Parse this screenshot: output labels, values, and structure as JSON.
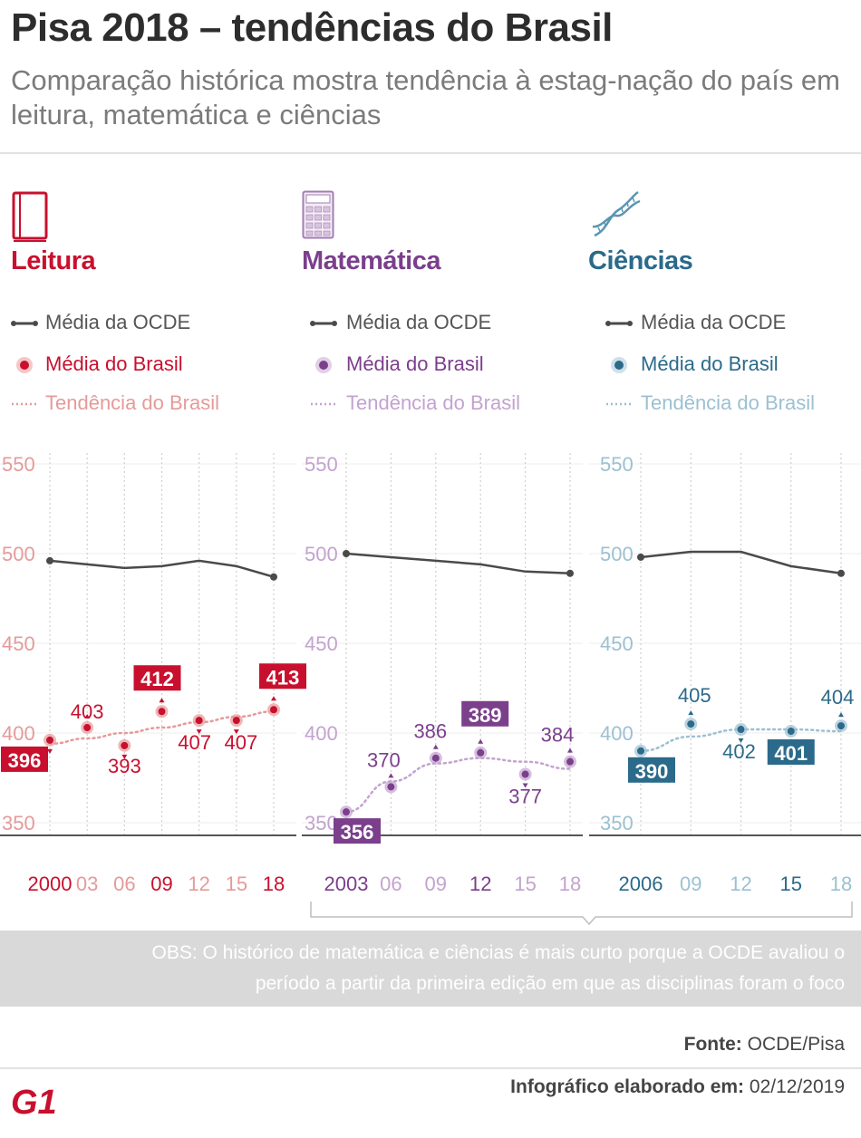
{
  "title": "Pisa 2018 – tendências do Brasil",
  "subtitle": "Comparação histórica mostra tendência à estag-nação do país em leitura, matemática e ciências",
  "legend": {
    "ocde": "Média da OCDE",
    "brasil": "Média do Brasil",
    "tendencia": "Tendência do Brasil"
  },
  "colors": {
    "leitura": "#c8102e",
    "matematica": "#7b3f8c",
    "ciencias": "#2b6a8a",
    "ocde_line": "#4a4a4a"
  },
  "icons": [
    "book-icon",
    "calculator-icon",
    "dna-icon"
  ],
  "chart_data": [
    {
      "type": "line",
      "title": "Leitura",
      "color": "#c8102e",
      "light_color": "#e59a9a",
      "categories": [
        "2000",
        "03",
        "06",
        "09",
        "12",
        "15",
        "18"
      ],
      "ylim": [
        350,
        550
      ],
      "yticks": [
        550,
        500,
        450,
        400,
        350
      ],
      "series": [
        {
          "name": "Média da OCDE",
          "values": [
            496,
            494,
            492,
            493,
            496,
            493,
            487
          ]
        },
        {
          "name": "Média do Brasil",
          "values": [
            396,
            403,
            393,
            412,
            407,
            407,
            413
          ]
        }
      ],
      "trend": [
        394,
        397,
        400,
        403,
        406,
        409,
        412
      ],
      "highlight": [
        0,
        3,
        6
      ]
    },
    {
      "type": "line",
      "title": "Matemática",
      "color": "#7b3f8c",
      "light_color": "#c3a3cf",
      "categories": [
        "2003",
        "06",
        "09",
        "12",
        "15",
        "18"
      ],
      "ylim": [
        350,
        550
      ],
      "yticks": [
        550,
        500,
        450,
        400,
        350
      ],
      "series": [
        {
          "name": "Média da OCDE",
          "values": [
            500,
            498,
            496,
            494,
            490,
            489
          ]
        },
        {
          "name": "Média do Brasil",
          "values": [
            356,
            370,
            386,
            389,
            377,
            384
          ]
        }
      ],
      "trend": [
        356,
        373,
        383,
        386,
        384,
        380
      ],
      "highlight": [
        0,
        3
      ]
    },
    {
      "type": "line",
      "title": "Ciências",
      "color": "#2b6a8a",
      "light_color": "#9cc0d2",
      "categories": [
        "2006",
        "09",
        "12",
        "15",
        "18"
      ],
      "ylim": [
        350,
        550
      ],
      "yticks": [
        550,
        500,
        450,
        400,
        350
      ],
      "series": [
        {
          "name": "Média da OCDE",
          "values": [
            498,
            501,
            501,
            493,
            489
          ]
        },
        {
          "name": "Média do Brasil",
          "values": [
            390,
            405,
            402,
            401,
            404
          ]
        }
      ],
      "trend": [
        390,
        398,
        402,
        402,
        401
      ],
      "highlight": [
        0,
        3
      ]
    }
  ],
  "obs": {
    "line1": "OBS: O histórico de matemática e ciências é mais curto porque a OCDE avaliou o",
    "line2": "período a partir da primeira edição em que as disciplinas foram o foco"
  },
  "source": {
    "label": "Fonte:",
    "value": "OCDE/Pisa"
  },
  "footer": {
    "label": "Infográfico elaborado em:",
    "value": "02/12/2019"
  },
  "logo_text": "G1"
}
